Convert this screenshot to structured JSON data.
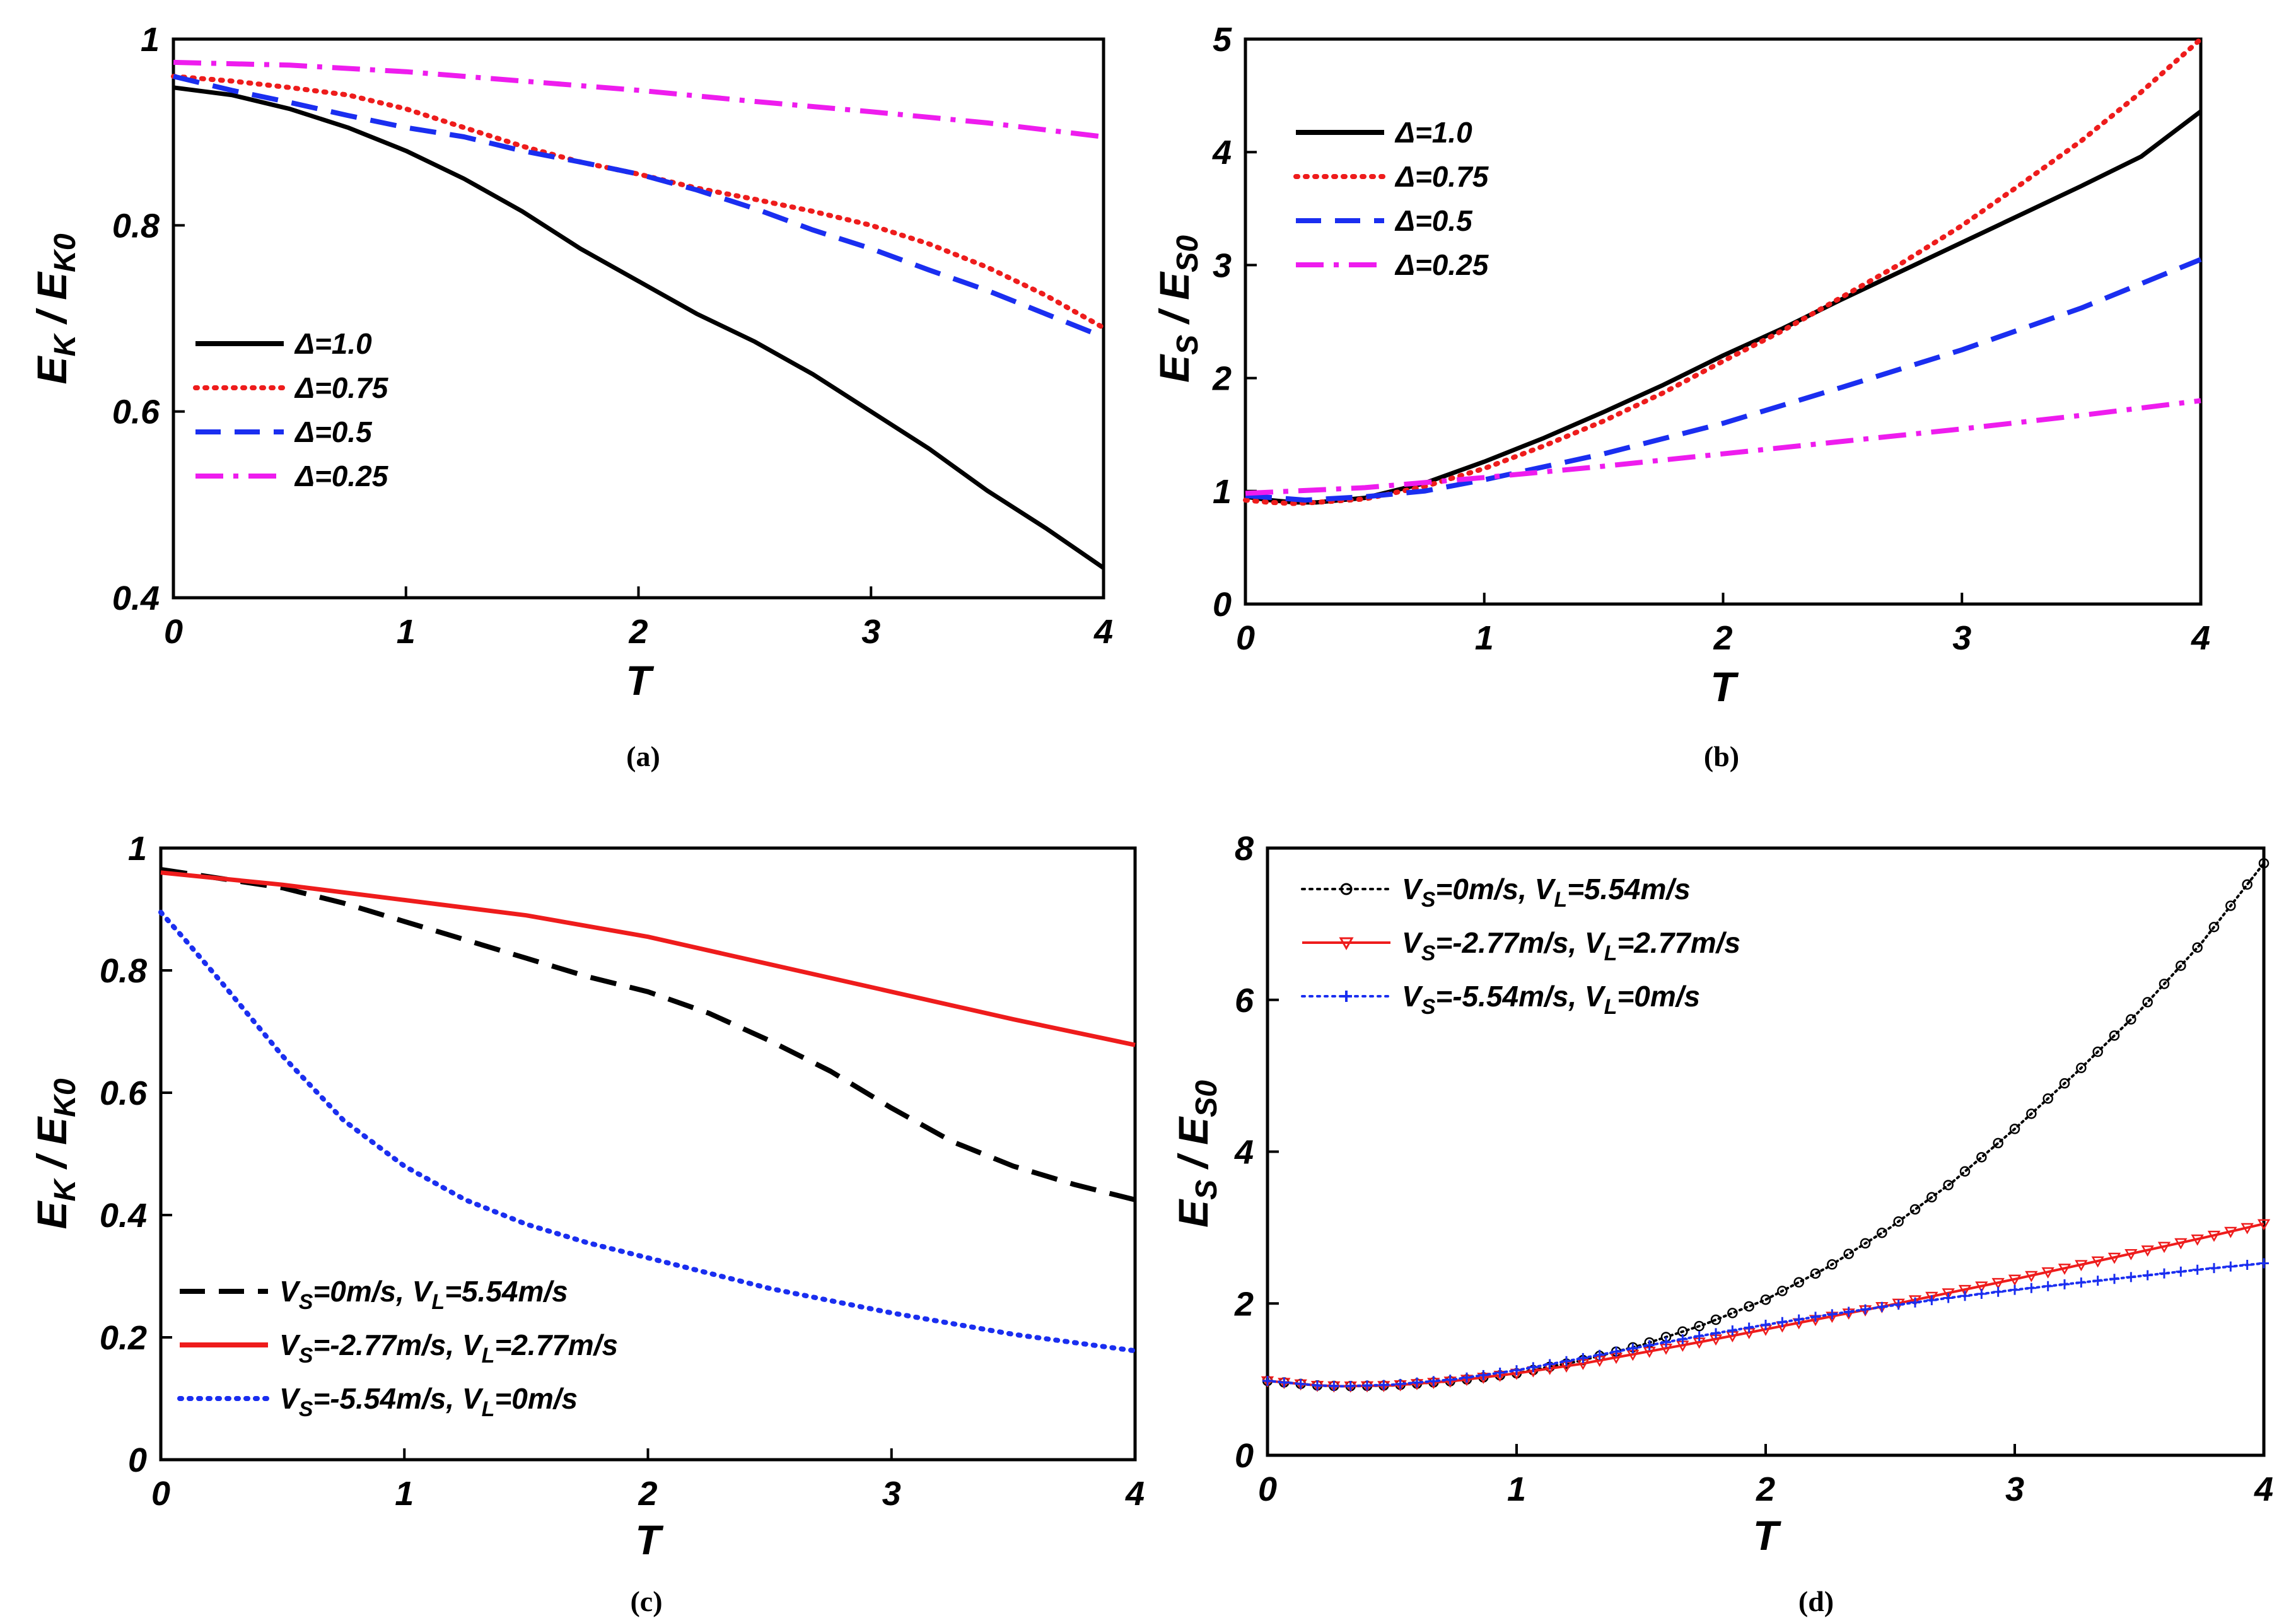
{
  "chart_data": [
    {
      "type": "line",
      "panel": "a",
      "caption": "(a)",
      "xlabel": "T",
      "ylabel_main": "E",
      "ylabel_sub": "K",
      "ylabel_sep": " / ",
      "ylabel_main2": "E",
      "ylabel_sub2": "K0",
      "xlim": [
        0,
        4
      ],
      "ylim": [
        0.4,
        1.0
      ],
      "xticks": [
        0,
        1,
        2,
        3,
        4
      ],
      "xtick_labels": [
        "0",
        "1",
        "2",
        "3",
        "4"
      ],
      "yticks": [
        0.4,
        0.6,
        0.8,
        1.0
      ],
      "ytick_labels": [
        "0.4",
        "0.6",
        "0.8",
        "1"
      ],
      "legend_position": "lower-left",
      "series": [
        {
          "name": "Δ=1.0",
          "color": "#000000",
          "style": "solid",
          "x": [
            0,
            0.25,
            0.5,
            0.75,
            1.0,
            1.25,
            1.5,
            1.75,
            2.0,
            2.25,
            2.5,
            2.75,
            3.0,
            3.25,
            3.5,
            3.75,
            4.0
          ],
          "y": [
            0.948,
            0.94,
            0.925,
            0.905,
            0.88,
            0.85,
            0.815,
            0.775,
            0.74,
            0.705,
            0.675,
            0.64,
            0.6,
            0.56,
            0.515,
            0.475,
            0.432
          ]
        },
        {
          "name": "Δ=0.75",
          "color": "#ee1c1c",
          "style": "dotted",
          "x": [
            0,
            0.25,
            0.5,
            0.75,
            1.0,
            1.25,
            1.5,
            1.75,
            2.0,
            2.25,
            2.5,
            2.75,
            3.0,
            3.25,
            3.5,
            3.75,
            4.0
          ],
          "y": [
            0.96,
            0.955,
            0.948,
            0.94,
            0.925,
            0.905,
            0.885,
            0.868,
            0.855,
            0.84,
            0.828,
            0.815,
            0.8,
            0.78,
            0.755,
            0.725,
            0.69
          ]
        },
        {
          "name": "Δ=0.5",
          "color": "#1a2ef0",
          "style": "dashed",
          "x": [
            0,
            0.25,
            0.5,
            0.75,
            1.0,
            1.25,
            1.5,
            1.75,
            2.0,
            2.25,
            2.5,
            2.75,
            3.0,
            3.25,
            3.5,
            3.75,
            4.0
          ],
          "y": [
            0.96,
            0.945,
            0.932,
            0.918,
            0.905,
            0.895,
            0.88,
            0.868,
            0.855,
            0.838,
            0.818,
            0.795,
            0.775,
            0.752,
            0.73,
            0.705,
            0.68
          ]
        },
        {
          "name": "Δ=0.25",
          "color": "#ee1cee",
          "style": "dashdot",
          "x": [
            0,
            0.5,
            1.0,
            1.5,
            2.0,
            2.5,
            3.0,
            3.5,
            4.0
          ],
          "y": [
            0.975,
            0.972,
            0.965,
            0.955,
            0.945,
            0.933,
            0.922,
            0.91,
            0.895
          ]
        }
      ]
    },
    {
      "type": "line",
      "panel": "b",
      "caption": "(b)",
      "xlabel": "T",
      "ylabel_main": "E",
      "ylabel_sub": "S",
      "ylabel_sep": " / ",
      "ylabel_main2": "E",
      "ylabel_sub2": "S0",
      "xlim": [
        0,
        4
      ],
      "ylim": [
        0,
        5
      ],
      "xticks": [
        0,
        1,
        2,
        3,
        4
      ],
      "xtick_labels": [
        "0",
        "1",
        "2",
        "3",
        "4"
      ],
      "yticks": [
        0,
        1,
        2,
        3,
        4,
        5
      ],
      "ytick_labels": [
        "0",
        "1",
        "2",
        "3",
        "4",
        "5"
      ],
      "legend_position": "top-left",
      "series": [
        {
          "name": "Δ=1.0",
          "color": "#000000",
          "style": "solid",
          "x": [
            0,
            0.1,
            0.2,
            0.3,
            0.5,
            0.75,
            1.0,
            1.25,
            1.5,
            1.75,
            2.0,
            2.25,
            2.5,
            2.75,
            3.0,
            3.25,
            3.5,
            3.75,
            4.0
          ],
          "y": [
            0.95,
            0.92,
            0.9,
            0.9,
            0.94,
            1.07,
            1.26,
            1.47,
            1.7,
            1.94,
            2.2,
            2.44,
            2.7,
            2.95,
            3.2,
            3.45,
            3.7,
            3.96,
            4.36
          ]
        },
        {
          "name": "Δ=0.75",
          "color": "#ee1c1c",
          "style": "dotted",
          "x": [
            0,
            0.1,
            0.2,
            0.3,
            0.5,
            0.75,
            1.0,
            1.25,
            1.5,
            1.75,
            2.0,
            2.25,
            2.5,
            2.75,
            3.0,
            3.25,
            3.5,
            3.75,
            4.0
          ],
          "y": [
            0.92,
            0.9,
            0.89,
            0.9,
            0.93,
            1.04,
            1.2,
            1.4,
            1.62,
            1.87,
            2.15,
            2.42,
            2.72,
            3.02,
            3.35,
            3.72,
            4.1,
            4.53,
            5.0
          ]
        },
        {
          "name": "Δ=0.5",
          "color": "#1a2ef0",
          "style": "dashed",
          "x": [
            0,
            0.25,
            0.5,
            0.75,
            1.0,
            1.5,
            2.0,
            2.5,
            3.0,
            3.5,
            4.0
          ],
          "y": [
            0.96,
            0.92,
            0.95,
            1.0,
            1.1,
            1.33,
            1.6,
            1.92,
            2.25,
            2.62,
            3.05
          ]
        },
        {
          "name": "Δ=0.25",
          "color": "#ee1cee",
          "style": "dashdot",
          "x": [
            0,
            0.5,
            1.0,
            1.5,
            2.0,
            2.5,
            3.0,
            3.5,
            4.0
          ],
          "y": [
            0.98,
            1.03,
            1.12,
            1.22,
            1.33,
            1.44,
            1.55,
            1.67,
            1.8
          ]
        }
      ]
    },
    {
      "type": "line",
      "panel": "c",
      "caption": "(c)",
      "xlabel": "T",
      "ylabel_main": "E",
      "ylabel_sub": "K",
      "ylabel_sep": " / ",
      "ylabel_main2": "E",
      "ylabel_sub2": "K0",
      "xlim": [
        0,
        4
      ],
      "ylim": [
        0,
        1.0
      ],
      "xticks": [
        0,
        1,
        2,
        3,
        4
      ],
      "xtick_labels": [
        "0",
        "1",
        "2",
        "3",
        "4"
      ],
      "yticks": [
        0,
        0.2,
        0.4,
        0.6,
        0.8,
        1.0
      ],
      "ytick_labels": [
        "0",
        "0.2",
        "0.4",
        "0.6",
        "0.8",
        "1"
      ],
      "legend_position": "lower-left",
      "series": [
        {
          "name": "V_S=0m/s, V_L=5.54m/s",
          "color": "#000000",
          "style": "dashed",
          "label_parts": [
            "V",
            "S",
            "=0m/s, V",
            "L",
            "=5.54m/s"
          ],
          "x": [
            0,
            0.25,
            0.5,
            0.75,
            1.0,
            1.25,
            1.5,
            1.75,
            2.0,
            2.25,
            2.5,
            2.75,
            3.0,
            3.25,
            3.5,
            3.75,
            4.0
          ],
          "y": [
            0.965,
            0.95,
            0.935,
            0.91,
            0.88,
            0.85,
            0.82,
            0.79,
            0.765,
            0.73,
            0.685,
            0.635,
            0.575,
            0.52,
            0.48,
            0.45,
            0.425
          ]
        },
        {
          "name": "V_S=-2.77m/s, V_L=2.77m/s",
          "color": "#ee1c1c",
          "style": "solid",
          "label_parts": [
            "V",
            "S",
            "=-2.77m/s, V",
            "L",
            "=2.77m/s"
          ],
          "x": [
            0,
            0.5,
            1.0,
            1.5,
            2.0,
            2.5,
            3.0,
            3.5,
            4.0
          ],
          "y": [
            0.96,
            0.94,
            0.915,
            0.89,
            0.855,
            0.81,
            0.765,
            0.72,
            0.678
          ]
        },
        {
          "name": "V_S=-5.54m/s, V_L=0m/s",
          "color": "#1a2ef0",
          "style": "dotted",
          "label_parts": [
            "V",
            "S",
            "=-5.54m/s, V",
            "L",
            "=0m/s"
          ],
          "x": [
            0,
            0.1,
            0.25,
            0.5,
            0.75,
            1.0,
            1.25,
            1.5,
            1.75,
            2.0,
            2.5,
            3.0,
            3.5,
            4.0
          ],
          "y": [
            0.895,
            0.85,
            0.78,
            0.66,
            0.555,
            0.48,
            0.425,
            0.385,
            0.355,
            0.33,
            0.28,
            0.24,
            0.205,
            0.178
          ]
        }
      ]
    },
    {
      "type": "line",
      "panel": "d",
      "caption": "(d)",
      "xlabel": "T",
      "ylabel_main": "E",
      "ylabel_sub": "S",
      "ylabel_sep": " / ",
      "ylabel_main2": "E",
      "ylabel_sub2": "S0",
      "xlim": [
        0,
        4
      ],
      "ylim": [
        0,
        8
      ],
      "xticks": [
        0,
        1,
        2,
        3,
        4
      ],
      "xtick_labels": [
        "0",
        "1",
        "2",
        "3",
        "4"
      ],
      "yticks": [
        0,
        2,
        4,
        6,
        8
      ],
      "ytick_labels": [
        "0",
        "2",
        "4",
        "6",
        "8"
      ],
      "legend_position": "top-left",
      "series": [
        {
          "name": "V_S=0m/s, V_L=5.54m/s",
          "color": "#000000",
          "style": "dotted",
          "marker": "circle",
          "label_parts": [
            "V",
            "S",
            "=0m/s, V",
            "L",
            "=5.54m/s"
          ],
          "x": [
            0,
            0.1,
            0.2,
            0.3,
            0.5,
            0.75,
            1.0,
            1.25,
            1.5,
            1.75,
            2.0,
            2.25,
            2.5,
            2.75,
            3.0,
            3.25,
            3.5,
            3.75,
            4.0
          ],
          "y": [
            0.98,
            0.95,
            0.92,
            0.91,
            0.92,
            0.98,
            1.08,
            1.24,
            1.45,
            1.72,
            2.05,
            2.48,
            3.0,
            3.6,
            4.3,
            5.05,
            5.85,
            6.75,
            7.8
          ]
        },
        {
          "name": "V_S=-2.77m/s, V_L=2.77m/s",
          "color": "#ee1c1c",
          "style": "solid",
          "marker": "triangle-down",
          "label_parts": [
            "V",
            "S",
            "=-2.77m/s, V",
            "L",
            "=2.77m/s"
          ],
          "x": [
            0,
            0.1,
            0.2,
            0.3,
            0.5,
            0.75,
            1.0,
            1.25,
            1.5,
            1.75,
            2.0,
            2.25,
            2.5,
            2.75,
            3.0,
            3.25,
            3.5,
            3.75,
            4.0
          ],
          "y": [
            0.98,
            0.95,
            0.92,
            0.91,
            0.92,
            0.98,
            1.08,
            1.2,
            1.35,
            1.5,
            1.66,
            1.82,
            1.98,
            2.15,
            2.32,
            2.5,
            2.68,
            2.86,
            3.05
          ]
        },
        {
          "name": "V_S=-5.54m/s, V_L=0m/s",
          "color": "#1a2ef0",
          "style": "dotted",
          "marker": "plus",
          "label_parts": [
            "V",
            "S",
            "=-5.54m/s, V",
            "L",
            "=0m/s"
          ],
          "x": [
            0,
            0.1,
            0.2,
            0.3,
            0.5,
            0.75,
            1.0,
            1.25,
            1.5,
            1.75,
            2.0,
            2.25,
            2.5,
            2.75,
            3.0,
            3.25,
            3.5,
            3.75,
            4.0
          ],
          "y": [
            0.98,
            0.95,
            0.92,
            0.91,
            0.93,
            1.0,
            1.12,
            1.27,
            1.43,
            1.58,
            1.72,
            1.85,
            1.97,
            2.08,
            2.18,
            2.27,
            2.36,
            2.45,
            2.53
          ]
        }
      ]
    }
  ]
}
